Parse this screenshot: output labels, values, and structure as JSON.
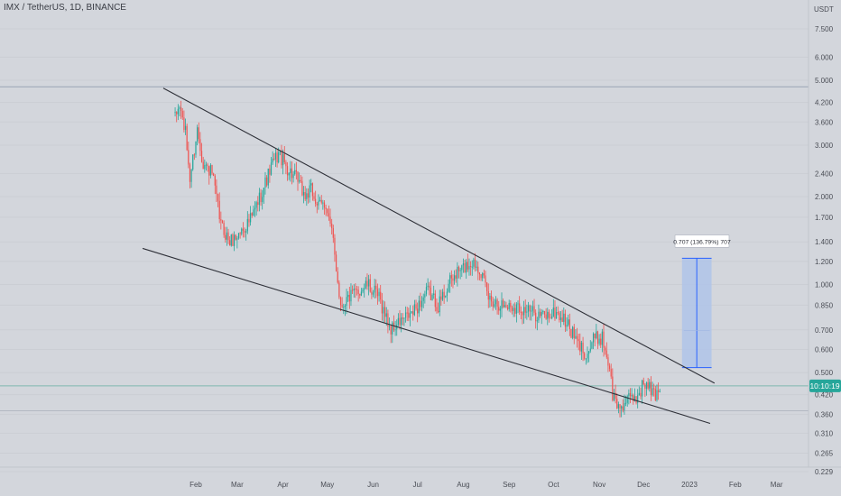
{
  "header": {
    "symbol_text": "IMX / TetherUS, 1D, BINANCE"
  },
  "price_axis": {
    "currency": "USDT",
    "ticks": [
      "7.500",
      "6.000",
      "5.000",
      "4.200",
      "3.600",
      "3.000",
      "2.400",
      "2.000",
      "1.700",
      "1.400",
      "1.200",
      "1.000",
      "0.850",
      "0.700",
      "0.600",
      "0.500",
      "0.420",
      "0.360",
      "0.310",
      "0.265",
      "0.229"
    ],
    "current_price_label": "10:10:19"
  },
  "time_axis": {
    "ticks": [
      "Feb",
      "Mar",
      "Apr",
      "May",
      "Jun",
      "Jul",
      "Aug",
      "Sep",
      "Oct",
      "Nov",
      "Dec",
      "2023",
      "Feb",
      "Mar"
    ]
  },
  "measure_label": "0.707 (136.79%) 707",
  "colors": {
    "up": "#26a69a",
    "down": "#ef5350",
    "trendline": "#2e3038",
    "measure_fill": "#aec3ea",
    "measure_line": "#2962ff",
    "price_tag": "#26a69a",
    "background": "#d3d6dc"
  },
  "chart_data": {
    "type": "candlestick",
    "title": "IMX / TetherUS, 1D, BINANCE",
    "scale": "log",
    "ylim": [
      0.229,
      7.5
    ],
    "y_unit": "USDT",
    "x_ticks": [
      "Feb",
      "Mar",
      "Apr",
      "May",
      "Jun",
      "Jul",
      "Aug",
      "Sep",
      "Oct",
      "Nov",
      "Dec",
      "2023",
      "Feb",
      "Mar"
    ],
    "y_ticks": [
      7.5,
      6.0,
      5.0,
      4.2,
      3.6,
      3.0,
      2.4,
      2.0,
      1.7,
      1.4,
      1.2,
      1.0,
      0.85,
      0.7,
      0.6,
      0.5,
      0.42,
      0.36,
      0.31,
      0.265,
      0.229
    ],
    "price_path": [
      [
        "2022-01-18",
        3.7
      ],
      [
        "2022-01-21",
        4.1
      ],
      [
        "2022-01-25",
        3.3
      ],
      [
        "2022-01-28",
        2.3
      ],
      [
        "2022-02-02",
        3.4
      ],
      [
        "2022-02-06",
        2.6
      ],
      [
        "2022-02-12",
        2.4
      ],
      [
        "2022-02-18",
        1.6
      ],
      [
        "2022-02-24",
        1.4
      ],
      [
        "2022-02-28",
        1.45
      ],
      [
        "2022-03-05",
        1.55
      ],
      [
        "2022-03-11",
        1.7
      ],
      [
        "2022-03-18",
        2.1
      ],
      [
        "2022-03-25",
        2.6
      ],
      [
        "2022-03-29",
        2.8
      ],
      [
        "2022-04-04",
        2.5
      ],
      [
        "2022-04-10",
        2.3
      ],
      [
        "2022-04-16",
        2.0
      ],
      [
        "2022-04-20",
        2.1
      ],
      [
        "2022-04-25",
        1.85
      ],
      [
        "2022-04-30",
        1.9
      ],
      [
        "2022-05-05",
        1.4
      ],
      [
        "2022-05-10",
        0.85
      ],
      [
        "2022-05-15",
        0.9
      ],
      [
        "2022-05-22",
        0.95
      ],
      [
        "2022-05-28",
        1.0
      ],
      [
        "2022-06-05",
        0.9
      ],
      [
        "2022-06-13",
        0.7
      ],
      [
        "2022-06-20",
        0.75
      ],
      [
        "2022-06-28",
        0.8
      ],
      [
        "2022-07-08",
        0.95
      ],
      [
        "2022-07-15",
        0.85
      ],
      [
        "2022-07-22",
        1.0
      ],
      [
        "2022-07-28",
        1.1
      ],
      [
        "2022-08-02",
        1.15
      ],
      [
        "2022-08-07",
        1.2
      ],
      [
        "2022-08-12",
        1.15
      ],
      [
        "2022-08-18",
        0.9
      ],
      [
        "2022-08-28",
        0.85
      ],
      [
        "2022-09-08",
        0.84
      ],
      [
        "2022-09-17",
        0.8
      ],
      [
        "2022-09-25",
        0.78
      ],
      [
        "2022-10-03",
        0.8
      ],
      [
        "2022-10-10",
        0.74
      ],
      [
        "2022-10-18",
        0.62
      ],
      [
        "2022-10-24",
        0.58
      ],
      [
        "2022-10-28",
        0.65
      ],
      [
        "2022-11-03",
        0.66
      ],
      [
        "2022-11-08",
        0.52
      ],
      [
        "2022-11-10",
        0.42
      ],
      [
        "2022-11-14",
        0.38
      ],
      [
        "2022-11-20",
        0.4
      ],
      [
        "2022-11-26",
        0.41
      ],
      [
        "2022-12-01",
        0.46
      ],
      [
        "2022-12-05",
        0.44
      ],
      [
        "2022-12-09",
        0.42
      ],
      [
        "2022-12-12",
        0.45
      ]
    ],
    "trendlines": [
      {
        "name": "upper resistance",
        "start": [
          "2022-01-10",
          4.7
        ],
        "end": [
          "2023-01-18",
          0.46
        ]
      },
      {
        "name": "lower support",
        "start": [
          "2021-12-27",
          1.33
        ],
        "end": [
          "2023-01-15",
          0.335
        ]
      }
    ],
    "horizontal_lines": [
      4.75,
      0.45,
      0.37
    ],
    "measure": {
      "from": 0.52,
      "to": 1.23,
      "x_start": "2022-12-27",
      "x_end": "2023-01-16",
      "label": "0.707 (136.79%) 707"
    },
    "last_price_label": "10:10:19"
  }
}
